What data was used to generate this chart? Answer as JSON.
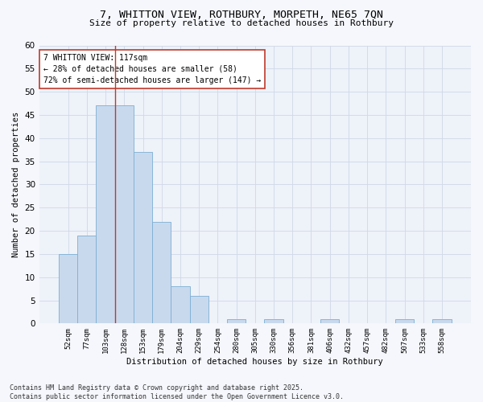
{
  "title1": "7, WHITTON VIEW, ROTHBURY, MORPETH, NE65 7QN",
  "title2": "Size of property relative to detached houses in Rothbury",
  "xlabel": "Distribution of detached houses by size in Rothbury",
  "ylabel": "Number of detached properties",
  "categories": [
    "52sqm",
    "77sqm",
    "103sqm",
    "128sqm",
    "153sqm",
    "179sqm",
    "204sqm",
    "229sqm",
    "254sqm",
    "280sqm",
    "305sqm",
    "330sqm",
    "356sqm",
    "381sqm",
    "406sqm",
    "432sqm",
    "457sqm",
    "482sqm",
    "507sqm",
    "533sqm",
    "558sqm"
  ],
  "values": [
    15,
    19,
    47,
    47,
    37,
    22,
    8,
    6,
    0,
    1,
    0,
    1,
    0,
    0,
    1,
    0,
    0,
    0,
    1,
    0,
    1
  ],
  "bar_color": "#c9d9ed",
  "bar_edge_color": "#7bafd4",
  "vline_x": 2.5,
  "vline_color": "#c0392b",
  "annotation_line1": "7 WHITTON VIEW: 117sqm",
  "annotation_line2": "← 28% of detached houses are smaller (58)",
  "annotation_line3": "72% of semi-detached houses are larger (147) →",
  "annotation_box_color": "#ffffff",
  "annotation_box_edge": "#c0392b",
  "annotation_fontsize": 7.0,
  "ylim": [
    0,
    60
  ],
  "yticks": [
    0,
    5,
    10,
    15,
    20,
    25,
    30,
    35,
    40,
    45,
    50,
    55,
    60
  ],
  "grid_color": "#d0d8e8",
  "bg_color": "#eef2f9",
  "fig_bg_color": "#f5f7fc",
  "footer": "Contains HM Land Registry data © Crown copyright and database right 2025.\nContains public sector information licensed under the Open Government Licence v3.0.",
  "footer_fontsize": 6.0,
  "title1_fontsize": 9.5,
  "title2_fontsize": 8.0
}
